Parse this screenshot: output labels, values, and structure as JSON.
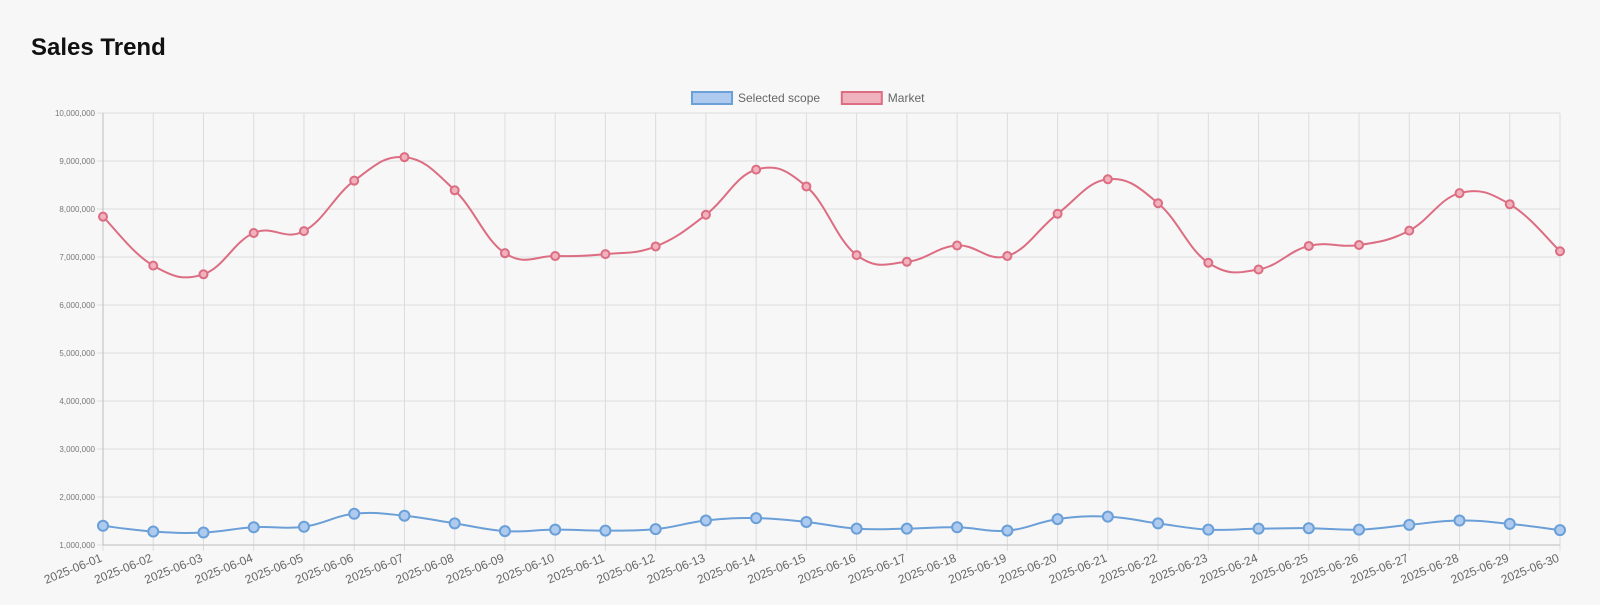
{
  "page": {
    "title": "Sales Trend"
  },
  "chart_data": {
    "type": "line",
    "title": "",
    "xlabel": "",
    "ylabel": "",
    "ylim": [
      1000000,
      10000000
    ],
    "yticks": [
      1000000,
      2000000,
      3000000,
      4000000,
      5000000,
      6000000,
      7000000,
      8000000,
      9000000,
      10000000
    ],
    "ytick_labels": [
      "1,000,000",
      "2,000,000",
      "3,000,000",
      "4,000,000",
      "5,000,000",
      "6,000,000",
      "7,000,000",
      "8,000,000",
      "9,000,000",
      "10,000,000"
    ],
    "grid": true,
    "legend": "top-center",
    "smooth": true,
    "x": [
      "2025-06-01",
      "2025-06-02",
      "2025-06-03",
      "2025-06-04",
      "2025-06-05",
      "2025-06-06",
      "2025-06-07",
      "2025-06-08",
      "2025-06-09",
      "2025-06-10",
      "2025-06-11",
      "2025-06-12",
      "2025-06-13",
      "2025-06-14",
      "2025-06-15",
      "2025-06-16",
      "2025-06-17",
      "2025-06-18",
      "2025-06-19",
      "2025-06-20",
      "2025-06-21",
      "2025-06-22",
      "2025-06-23",
      "2025-06-24",
      "2025-06-25",
      "2025-06-26",
      "2025-06-27",
      "2025-06-28",
      "2025-06-29",
      "2025-06-30"
    ],
    "series": [
      {
        "name": "Selected scope",
        "color": "#6a9fd8",
        "fill": "#aecbef",
        "values": [
          1400000,
          1280000,
          1260000,
          1370000,
          1380000,
          1650000,
          1610000,
          1450000,
          1290000,
          1320000,
          1300000,
          1330000,
          1510000,
          1560000,
          1480000,
          1340000,
          1340000,
          1370000,
          1300000,
          1540000,
          1590000,
          1450000,
          1320000,
          1340000,
          1350000,
          1320000,
          1420000,
          1510000,
          1440000,
          1310000
        ]
      },
      {
        "name": "Market",
        "color": "#dc6d82",
        "fill": "#f0b2bd",
        "values": [
          7840000,
          6820000,
          6640000,
          7500000,
          7540000,
          8590000,
          9080000,
          8390000,
          7080000,
          7020000,
          7060000,
          7220000,
          7880000,
          8820000,
          8470000,
          7040000,
          6900000,
          7240000,
          7020000,
          7900000,
          8620000,
          8120000,
          6880000,
          6740000,
          7230000,
          7250000,
          7550000,
          8330000,
          8100000,
          7120000
        ]
      }
    ]
  }
}
